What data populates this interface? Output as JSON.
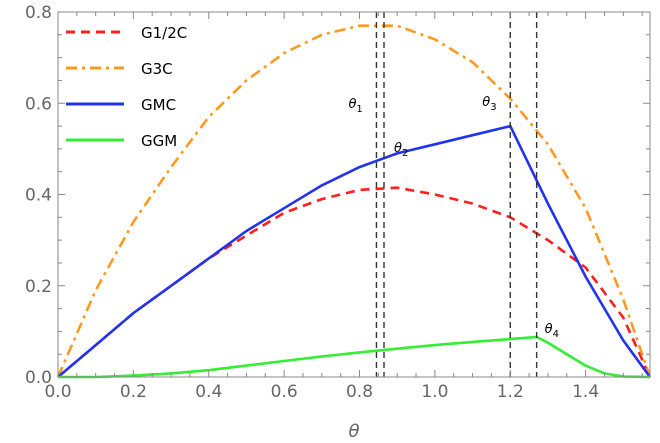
{
  "chart_data": {
    "type": "line",
    "xlabel": "θ",
    "ylabel": "",
    "title": "",
    "xlim": [
      0,
      1.5708
    ],
    "ylim": [
      0,
      0.8
    ],
    "xticks": [
      0.0,
      0.2,
      0.4,
      0.6,
      0.8,
      1.0,
      1.2,
      1.4
    ],
    "xtick_labels": [
      "0.0",
      "0.2",
      "0.4",
      "0.6",
      "0.8",
      "1.0",
      "1.2",
      "1.4"
    ],
    "yticks": [
      0.0,
      0.2,
      0.4,
      0.6,
      0.8
    ],
    "ytick_labels": [
      "0.0",
      "0.2",
      "0.4",
      "0.6",
      "0.8"
    ],
    "legend_position": "top-left",
    "grid": false,
    "series": [
      {
        "name": "G1/2C",
        "color": "#ff1f1f",
        "dash": "dashed",
        "x": [
          0.0,
          0.1,
          0.2,
          0.3,
          0.4,
          0.5,
          0.6,
          0.7,
          0.8,
          0.9,
          1.0,
          1.1,
          1.2,
          1.3,
          1.4,
          1.5,
          1.5708
        ],
        "y": [
          0.0,
          0.07,
          0.14,
          0.2,
          0.26,
          0.31,
          0.36,
          0.39,
          0.41,
          0.415,
          0.4,
          0.38,
          0.35,
          0.3,
          0.24,
          0.13,
          0.0
        ]
      },
      {
        "name": "G3C",
        "color": "#ff9922",
        "dash": "dashdot",
        "x": [
          0.0,
          0.1,
          0.2,
          0.3,
          0.4,
          0.5,
          0.6,
          0.7,
          0.8,
          0.9,
          1.0,
          1.1,
          1.2,
          1.3,
          1.4,
          1.5,
          1.5708
        ],
        "y": [
          0.0,
          0.19,
          0.34,
          0.46,
          0.57,
          0.65,
          0.71,
          0.75,
          0.77,
          0.77,
          0.74,
          0.69,
          0.61,
          0.51,
          0.37,
          0.17,
          0.0
        ]
      },
      {
        "name": "GMC",
        "color": "#2233ee",
        "dash": "solid",
        "x": [
          0.0,
          0.1,
          0.2,
          0.3,
          0.4,
          0.5,
          0.6,
          0.7,
          0.8,
          0.9,
          1.0,
          1.1,
          1.2,
          1.3,
          1.4,
          1.5,
          1.5708
        ],
        "y": [
          0.0,
          0.07,
          0.14,
          0.2,
          0.26,
          0.32,
          0.37,
          0.42,
          0.46,
          0.49,
          0.51,
          0.53,
          0.55,
          0.38,
          0.22,
          0.08,
          0.0
        ]
      },
      {
        "name": "GGM",
        "color": "#33ee33",
        "dash": "solid",
        "x": [
          0.0,
          0.1,
          0.2,
          0.3,
          0.4,
          0.5,
          0.6,
          0.7,
          0.8,
          0.9,
          1.0,
          1.1,
          1.2,
          1.27,
          1.3,
          1.35,
          1.4,
          1.45,
          1.5,
          1.5708
        ],
        "y": [
          0.0,
          0.0,
          0.003,
          0.008,
          0.015,
          0.025,
          0.035,
          0.045,
          0.054,
          0.062,
          0.07,
          0.077,
          0.083,
          0.088,
          0.075,
          0.05,
          0.025,
          0.008,
          0.001,
          0.0
        ]
      }
    ],
    "vlines": [
      {
        "x": 0.845,
        "label": "θ1"
      },
      {
        "x": 0.865,
        "label": "θ2"
      },
      {
        "x": 1.2,
        "label": "θ3"
      },
      {
        "x": 1.27,
        "label": "θ4"
      }
    ]
  }
}
